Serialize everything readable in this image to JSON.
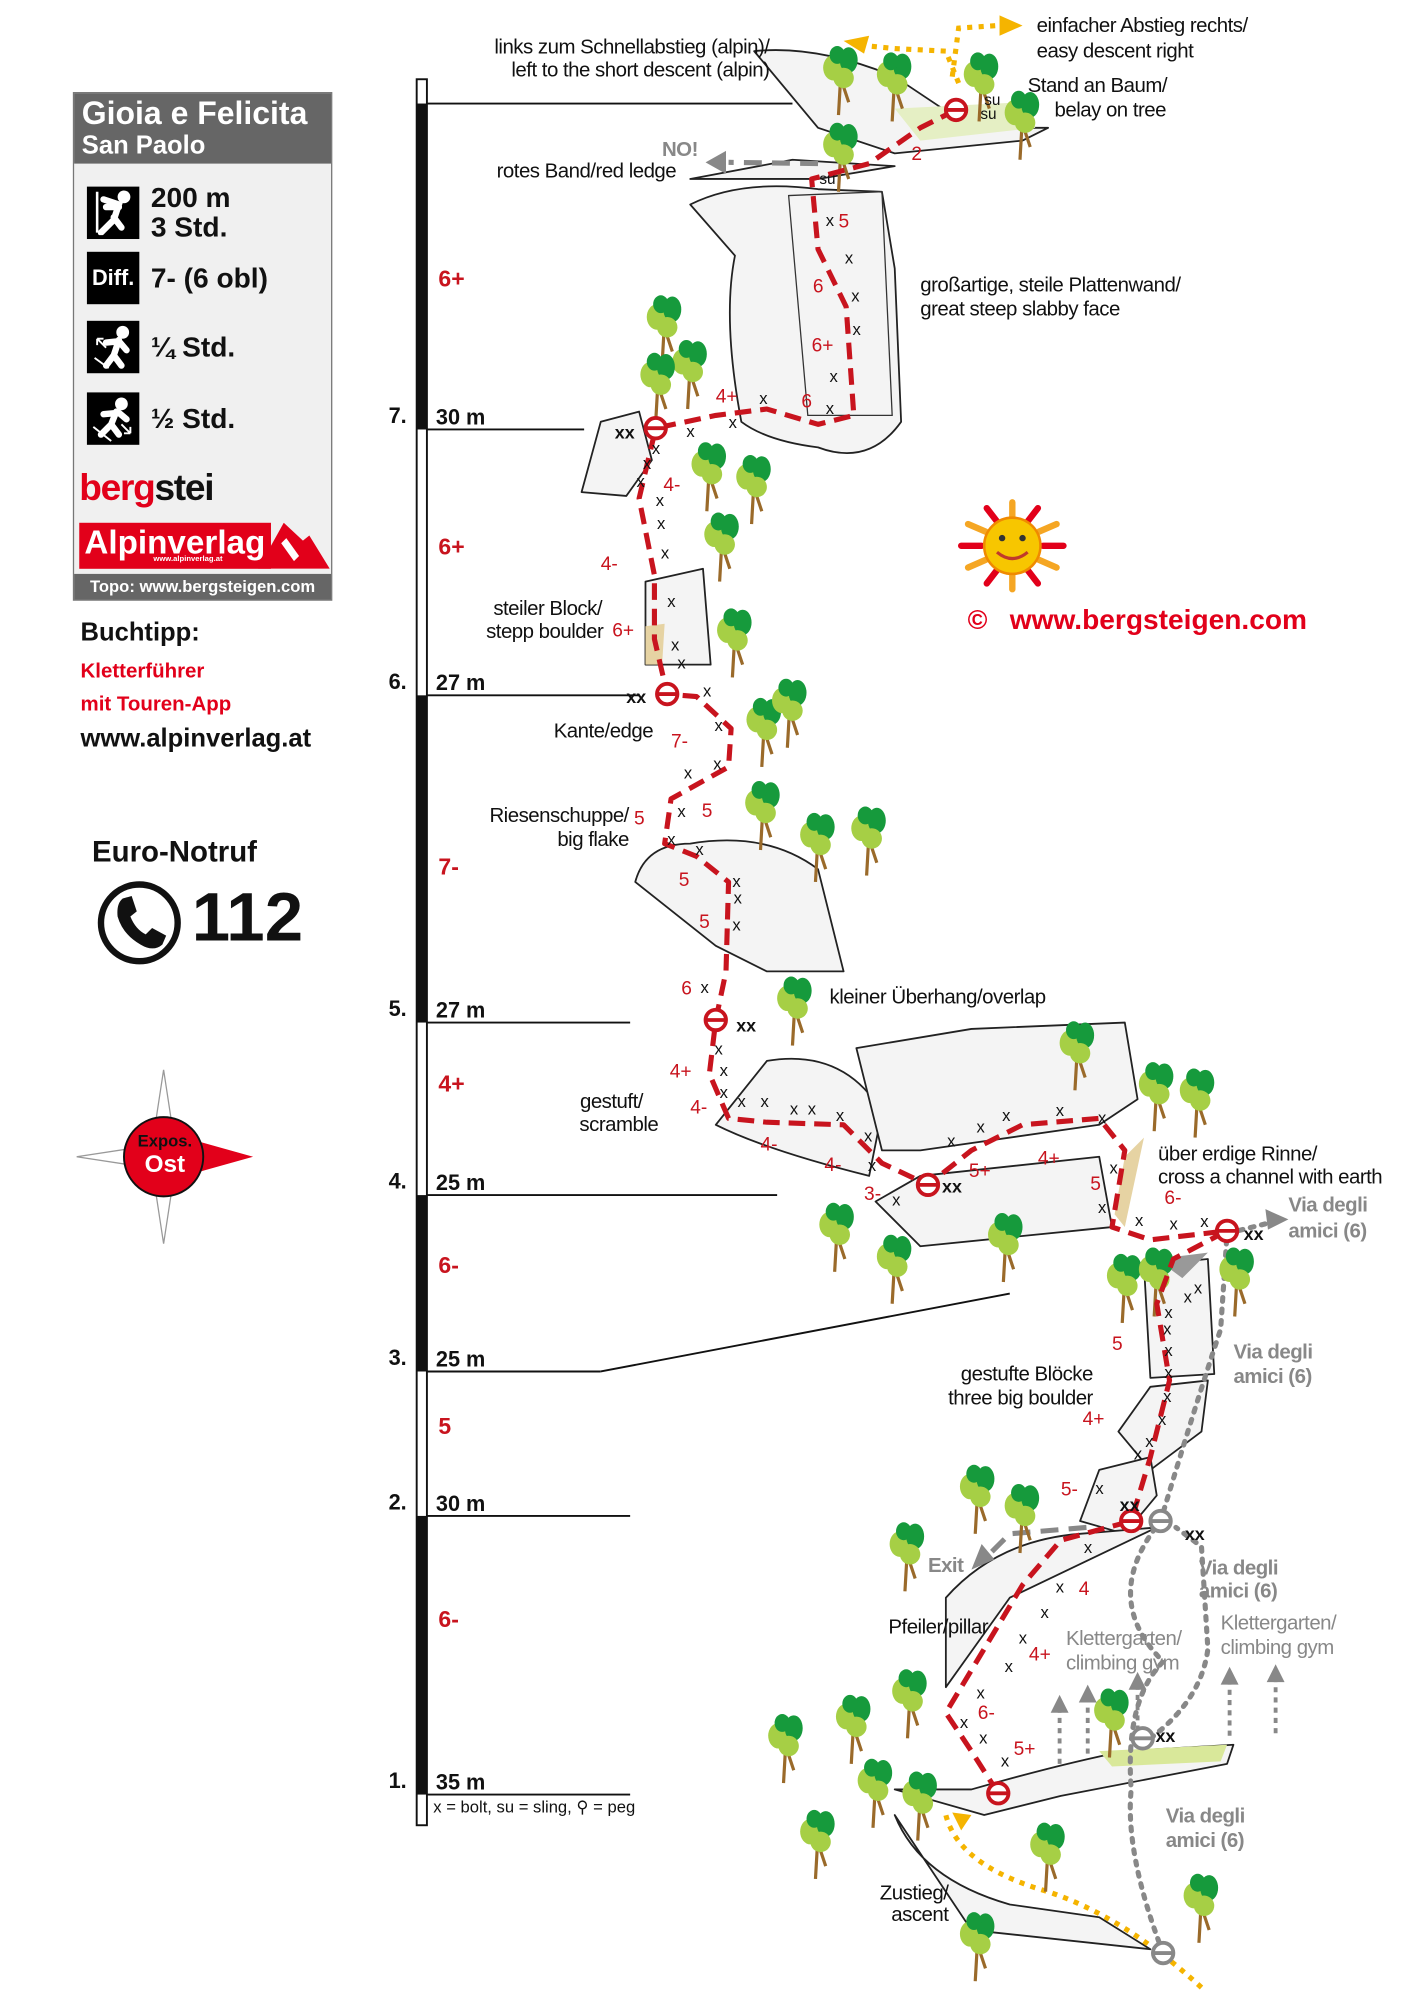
{
  "info_card": {
    "title": "Gioia e Felicita",
    "subtitle": "San Paolo",
    "length": "200 m",
    "time": "3 Std.",
    "diff_label": "Diff.",
    "difficulty": "7- (6 obl)",
    "approach_time": "¼ Std.",
    "descent_time": "½ Std.",
    "topo_credit": "Topo: www.bergsteigen.com",
    "icons": [
      "climber-icon",
      "difficulty-icon",
      "approach-hiker-icon",
      "descent-hiker-icon"
    ]
  },
  "logos": {
    "bergsteigen_red": "berg",
    "bergsteigen_black": "stei",
    "alpinverlag": "Alpinverlag",
    "alpinverlag_url": "www.alpinverlag.at"
  },
  "book_tip": {
    "heading": "Buchtipp:",
    "line1": "Kletterführer",
    "line2": "mit Touren-App",
    "url": "www.alpinverlag.at"
  },
  "emergency": {
    "label": "Euro-Notruf",
    "number": "112",
    "icon": "phone-icon"
  },
  "compass": {
    "label": "Expos.",
    "direction": "Ost"
  },
  "pitches": [
    {
      "number": "1.",
      "length": "35 m",
      "grade": "6-"
    },
    {
      "number": "2.",
      "length": "30 m",
      "grade": "5"
    },
    {
      "number": "3.",
      "length": "25 m",
      "grade": "6-"
    },
    {
      "number": "4.",
      "length": "25 m",
      "grade": "4+"
    },
    {
      "number": "5.",
      "length": "27 m",
      "grade": "7-"
    },
    {
      "number": "6.",
      "length": "27 m",
      "grade": "6+"
    },
    {
      "number": "7.",
      "length": "30 m",
      "grade": "6+"
    }
  ],
  "legend": "x = bolt, su = sling, ⚲ = peg",
  "annotations": [
    {
      "lines": [
        "links zum Schnellabstieg (alpin)/",
        "left to the short descent (alpin)"
      ]
    },
    {
      "lines": [
        "einfacher Abstieg rechts/",
        "easy descent right"
      ]
    },
    {
      "lines": [
        "Stand an Baum/",
        "belay on tree"
      ]
    },
    {
      "lines": [
        "NO!"
      ]
    },
    {
      "lines": [
        "rotes Band/red ledge"
      ]
    },
    {
      "lines": [
        "großartige, steile Plattenwand/",
        "great steep slabby face"
      ]
    },
    {
      "lines": [
        "steiler Block/",
        "stepp boulder"
      ]
    },
    {
      "lines": [
        "Kante/edge"
      ]
    },
    {
      "lines": [
        "Riesenschuppe/",
        "big flake"
      ]
    },
    {
      "lines": [
        "kleiner Überhang/overlap"
      ]
    },
    {
      "lines": [
        "gestuft/",
        "scramble"
      ]
    },
    {
      "lines": [
        "über erdige Rinne/",
        "cross a channel with earth"
      ]
    },
    {
      "lines": [
        "Via degli",
        "amici (6)"
      ]
    },
    {
      "lines": [
        "Via degli",
        "amici (6)"
      ]
    },
    {
      "lines": [
        "gestufte Blöcke",
        "three big boulder"
      ]
    },
    {
      "lines": [
        "Exit"
      ]
    },
    {
      "lines": [
        "Via degli",
        "amici (6)"
      ]
    },
    {
      "lines": [
        "Pfeiler/pillar"
      ]
    },
    {
      "lines": [
        "Klettergarten/",
        "climbing gym"
      ]
    },
    {
      "lines": [
        "Klettergarten/",
        "climbing gym"
      ]
    },
    {
      "lines": [
        "Via degli",
        "amici (6)"
      ]
    },
    {
      "lines": [
        "Zustieg/",
        "ascent"
      ]
    }
  ],
  "route_grades": [
    "5",
    "6",
    "6+",
    "6",
    "4+",
    "2",
    "4-",
    "4-",
    "6+",
    "7-",
    "5",
    "5",
    "5",
    "5",
    "6",
    "4+",
    "4-",
    "4-",
    "4-",
    "3-",
    "5+",
    "4+",
    "5",
    "6-",
    "5",
    "4+",
    "5-",
    "4",
    "4+",
    "6-",
    "5+"
  ],
  "belay_labels": [
    "xx",
    "xx",
    "xx",
    "xx",
    "xx",
    "xx",
    "xx",
    "xx"
  ],
  "sling_labels": [
    "su",
    "su",
    "su"
  ],
  "bolt_symbol": "x",
  "copyright": {
    "symbol": "©",
    "url": "www.bergsteigen.com"
  },
  "colors": {
    "route": "#c8141e",
    "belay": "#c8141e",
    "other_route": "#888888",
    "descent": "#f5b400",
    "tree_dark": "#169a3c",
    "tree_light": "#a6cf45",
    "brand_red": "#e2001a",
    "card_header": "#666666"
  }
}
